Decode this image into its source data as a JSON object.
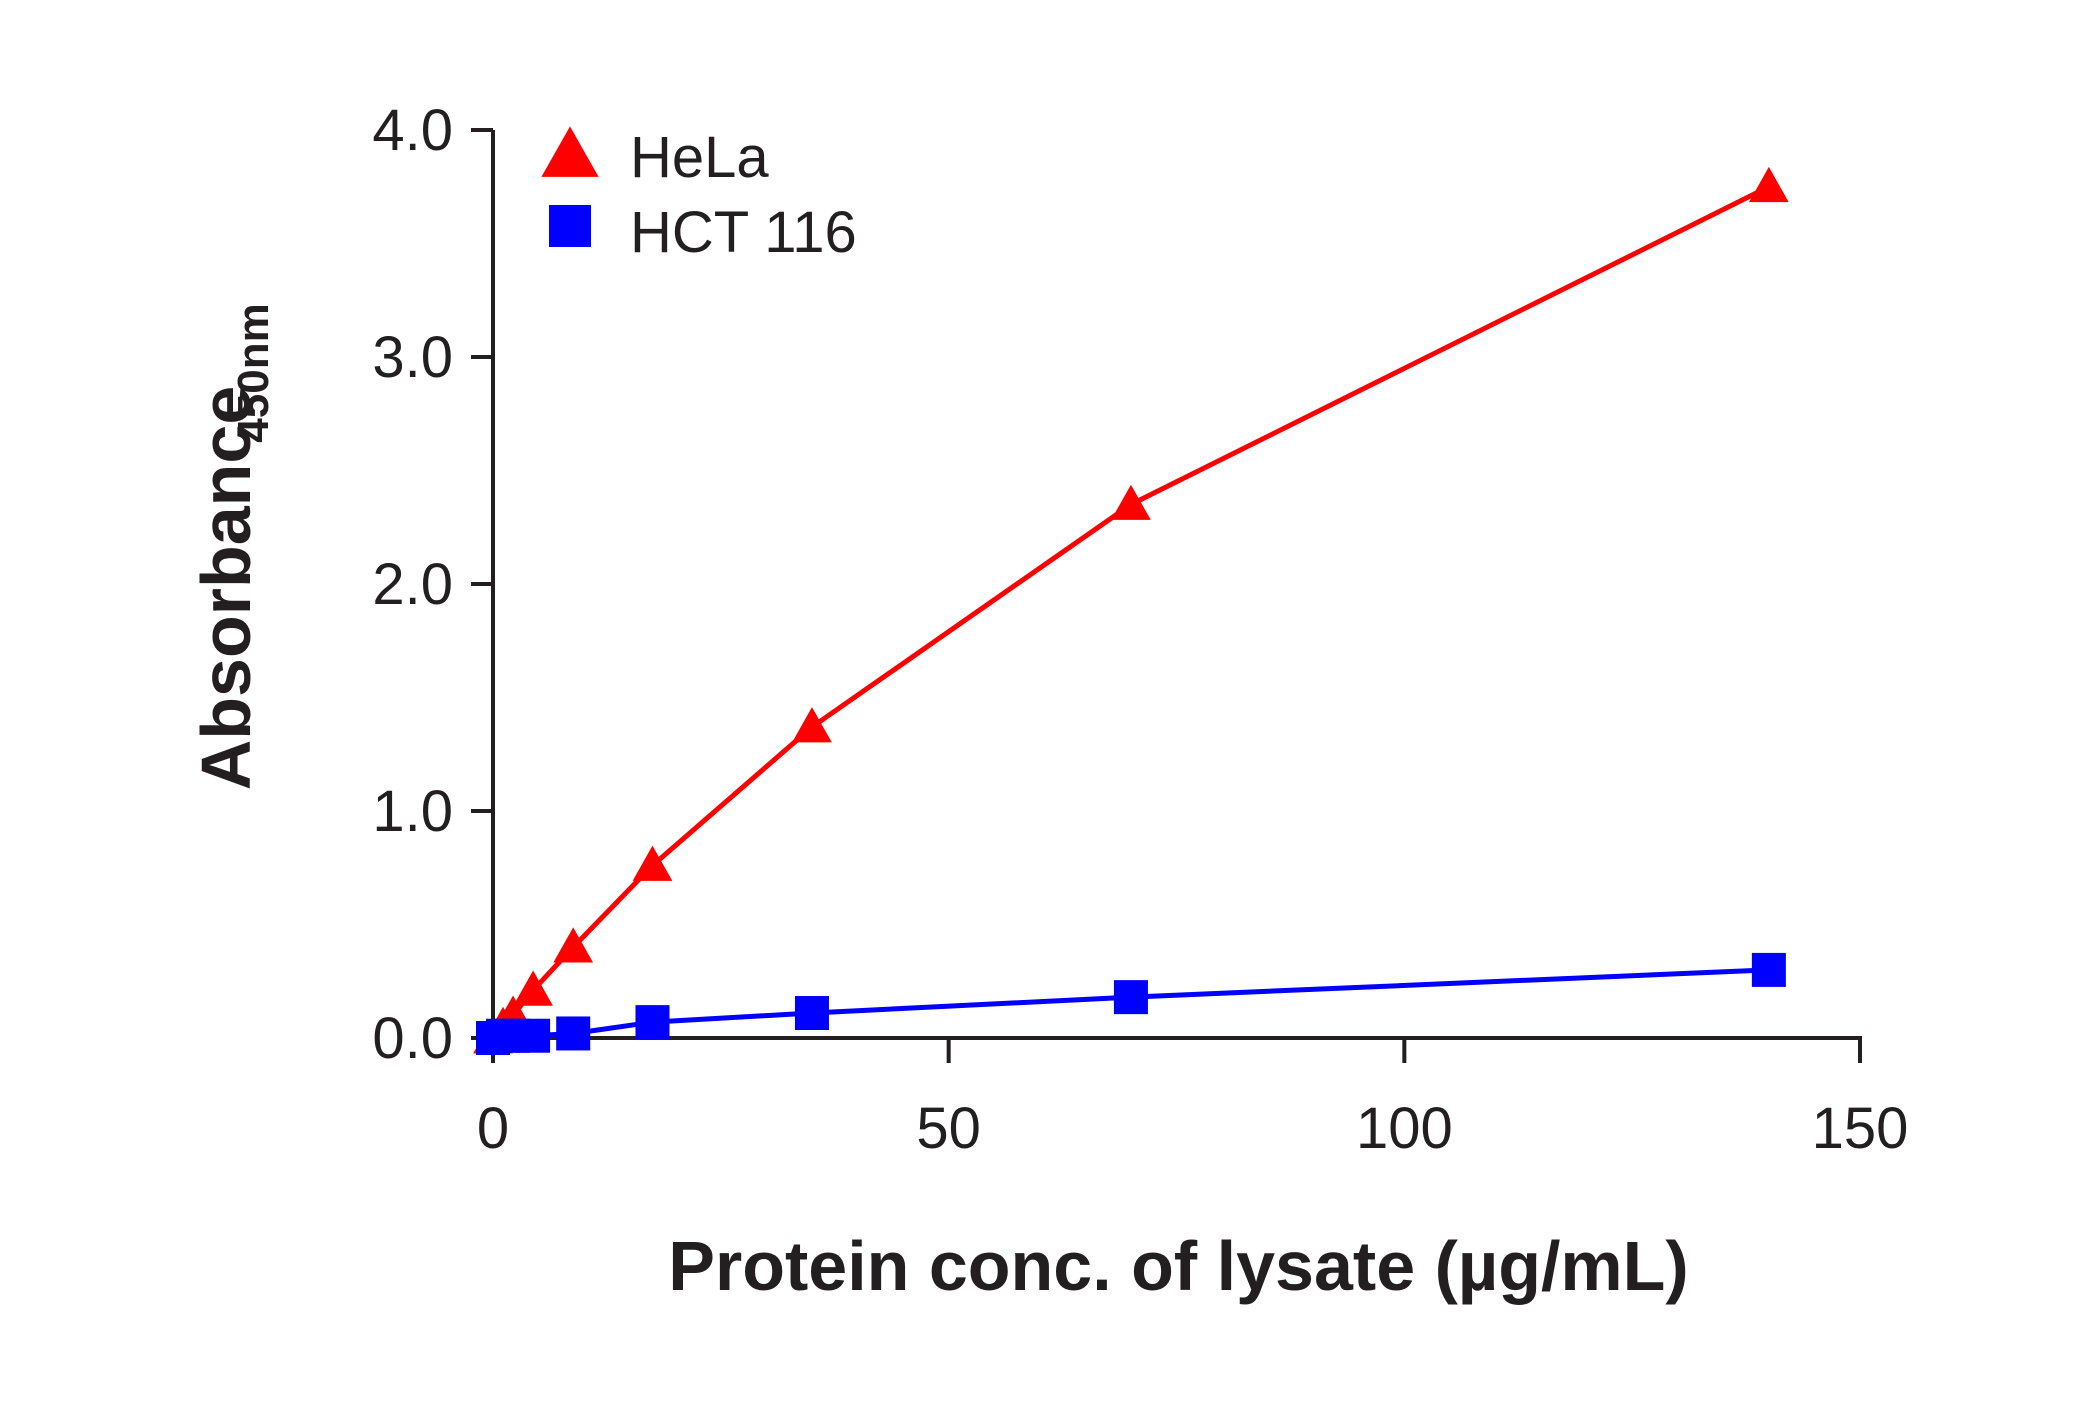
{
  "chart_data": {
    "type": "line",
    "xlabel": "Protein conc. of lysate (µg/mL)",
    "ylabel": "Absorbance",
    "ylabel_subscript": "450nm",
    "xlim": [
      0,
      150
    ],
    "ylim": [
      0,
      4.0
    ],
    "x_ticks": [
      "0",
      "50",
      "100",
      "150"
    ],
    "y_ticks": [
      "0.0",
      "1.0",
      "2.0",
      "3.0",
      "4.0"
    ],
    "grid": false,
    "legend_position": "top-left",
    "series": [
      {
        "name": "HeLa",
        "marker": "triangle",
        "color": "#ff0000",
        "x": [
          0,
          1.1,
          2.2,
          4.4,
          8.8,
          17.5,
          35,
          70,
          140
        ],
        "y": [
          0.0,
          0.05,
          0.1,
          0.21,
          0.4,
          0.76,
          1.37,
          2.35,
          3.75
        ]
      },
      {
        "name": "HCT 116",
        "marker": "square",
        "color": "#0000ff",
        "x": [
          0,
          1.1,
          2.2,
          4.4,
          8.8,
          17.5,
          35,
          70,
          140
        ],
        "y": [
          0.0,
          0.01,
          0.01,
          0.01,
          0.02,
          0.07,
          0.11,
          0.18,
          0.3
        ]
      }
    ]
  }
}
